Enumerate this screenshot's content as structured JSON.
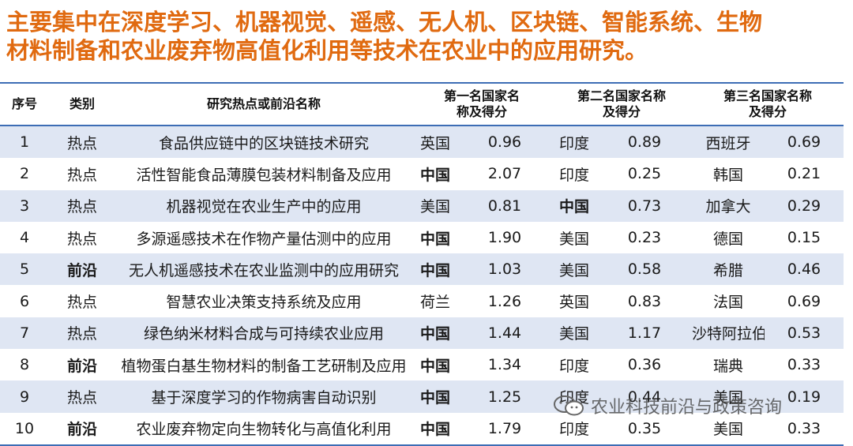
{
  "headline": {
    "line1": "主要集中在深度学习、机器视觉、遥感、无人机、区块链、智能系统、生物",
    "line2": "材料制备和农业废弃物高值化利用等技术在农业中的应用研究。"
  },
  "table": {
    "headers": {
      "index": "序号",
      "category": "类别",
      "topic": "研究热点或前沿名称",
      "first": "第一名国家名称及得分",
      "second": "第二名国家名称及得分",
      "third": "第三名国家名称及得分"
    },
    "rows": [
      {
        "index": "1",
        "category": "热点",
        "topic": "食品供应链中的区块链技术研究",
        "c1": "英国",
        "s1": "0.96",
        "c2": "印度",
        "s2": "0.89",
        "c3": "西班牙",
        "s3": "0.69"
      },
      {
        "index": "2",
        "category": "热点",
        "topic": "活性智能食品薄膜包装材料制备及应用",
        "c1": "中国",
        "s1": "2.07",
        "c2": "印度",
        "s2": "0.25",
        "c3": "韩国",
        "s3": "0.21"
      },
      {
        "index": "3",
        "category": "热点",
        "topic": "机器视觉在农业生产中的应用",
        "c1": "美国",
        "s1": "0.81",
        "c2": "中国",
        "s2": "0.73",
        "c3": "加拿大",
        "s3": "0.29"
      },
      {
        "index": "4",
        "category": "热点",
        "topic": "多源遥感技术在作物产量估测中的应用",
        "c1": "中国",
        "s1": "1.90",
        "c2": "美国",
        "s2": "0.23",
        "c3": "德国",
        "s3": "0.15"
      },
      {
        "index": "5",
        "category": "前沿",
        "topic": "无人机遥感技术在农业监测中的应用研究",
        "c1": "中国",
        "s1": "1.03",
        "c2": "美国",
        "s2": "0.58",
        "c3": "希腊",
        "s3": "0.46"
      },
      {
        "index": "6",
        "category": "热点",
        "topic": "智慧农业决策支持系统及应用",
        "c1": "荷兰",
        "s1": "1.26",
        "c2": "英国",
        "s2": "0.83",
        "c3": "法国",
        "s3": "0.69"
      },
      {
        "index": "7",
        "category": "热点",
        "topic": "绿色纳米材料合成与可持续农业应用",
        "c1": "中国",
        "s1": "1.44",
        "c2": "美国",
        "s2": "1.17",
        "c3": "沙特阿拉伯",
        "s3": "0.53"
      },
      {
        "index": "8",
        "category": "前沿",
        "topic": "植物蛋白基生物材料的制备工艺研制及应用",
        "c1": "中国",
        "s1": "1.34",
        "c2": "印度",
        "s2": "0.36",
        "c3": "瑞典",
        "s3": "0.33"
      },
      {
        "index": "9",
        "category": "热点",
        "topic": "基于深度学习的作物病害自动识别",
        "c1": "中国",
        "s1": "1.25",
        "c2": "印度",
        "s2": "0.44",
        "c3": "美国",
        "s3": "0.19"
      },
      {
        "index": "10",
        "category": "前沿",
        "topic": "农业废弃物定向生物转化与高值化利用",
        "c1": "中国",
        "s1": "1.79",
        "c2": "印度",
        "s2": "0.35",
        "c3": "美国",
        "s3": "0.33"
      }
    ]
  },
  "highlight": {
    "country": "中国",
    "category": "前沿",
    "color": "#e06a10"
  },
  "watermark": {
    "icon": "wechat-icon",
    "text": "农业科技前沿与政策咨询"
  }
}
